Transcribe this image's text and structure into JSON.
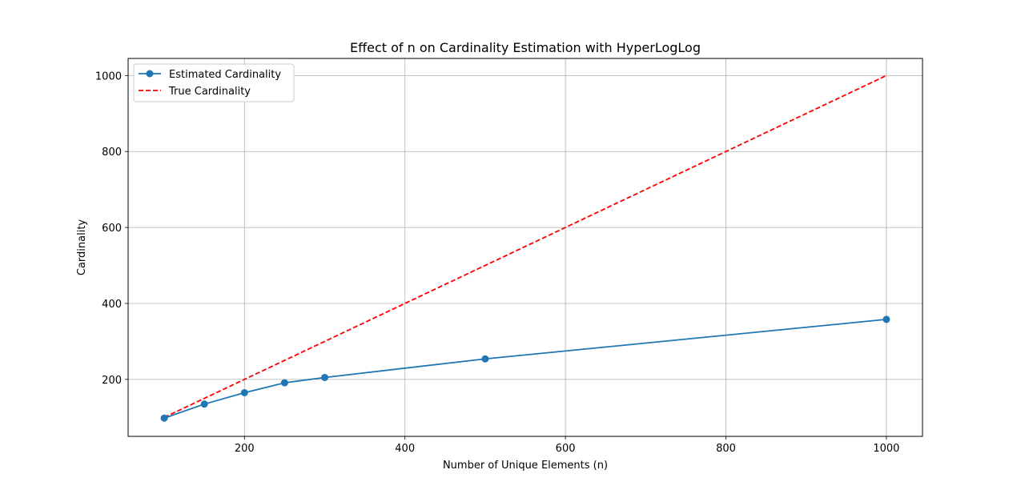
{
  "chart_data": {
    "type": "line",
    "title": "Effect of n on Cardinality Estimation with HyperLogLog",
    "xlabel": "Number of Unique Elements (n)",
    "ylabel": "Cardinality",
    "xlim": [
      55,
      1045
    ],
    "ylim": [
      50,
      1045
    ],
    "xticks": [
      200,
      400,
      600,
      800,
      1000
    ],
    "yticks": [
      200,
      400,
      600,
      800,
      1000
    ],
    "grid": true,
    "legend_position": "top-left",
    "series": [
      {
        "name": "Estimated Cardinality",
        "style": "solid",
        "marker": "circle",
        "color": "#1f77b4",
        "x": [
          100,
          150,
          200,
          250,
          300,
          500,
          1000
        ],
        "y": [
          98,
          135,
          165,
          191,
          205,
          254,
          358
        ]
      },
      {
        "name": "True Cardinality",
        "style": "dashed",
        "marker": "none",
        "color": "#ff0000",
        "x": [
          100,
          150,
          200,
          250,
          300,
          500,
          1000
        ],
        "y": [
          100,
          150,
          200,
          250,
          300,
          500,
          1000
        ]
      }
    ]
  }
}
